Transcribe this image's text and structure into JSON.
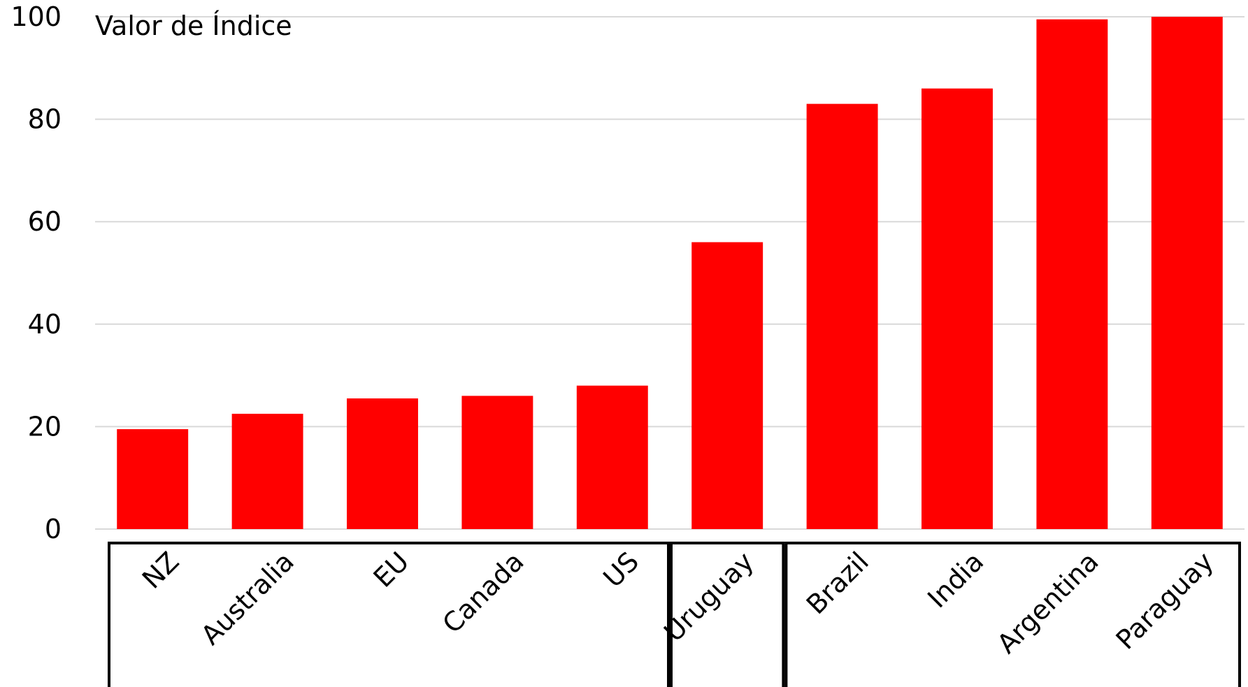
{
  "chart_data": {
    "type": "bar",
    "ylabel": "Valor de Índice",
    "ylim": [
      0,
      100
    ],
    "yticks": [
      0,
      20,
      40,
      60,
      80,
      100
    ],
    "grid": true,
    "categories": [
      "NZ",
      "Australia",
      "EU",
      "Canada",
      "US",
      "Uruguay",
      "Brazil",
      "India",
      "Argentina",
      "Paraguay"
    ],
    "values": [
      19.5,
      22.5,
      25.5,
      26,
      28,
      56,
      83,
      86,
      99.5,
      100
    ],
    "groups": [
      [
        "NZ",
        "Australia",
        "EU",
        "Canada",
        "US"
      ],
      [
        "Uruguay"
      ],
      [
        "Brazil",
        "India",
        "Argentina",
        "Paraguay"
      ]
    ],
    "bar_color": "#ff0000",
    "grid_color": "#d9d9d9"
  }
}
